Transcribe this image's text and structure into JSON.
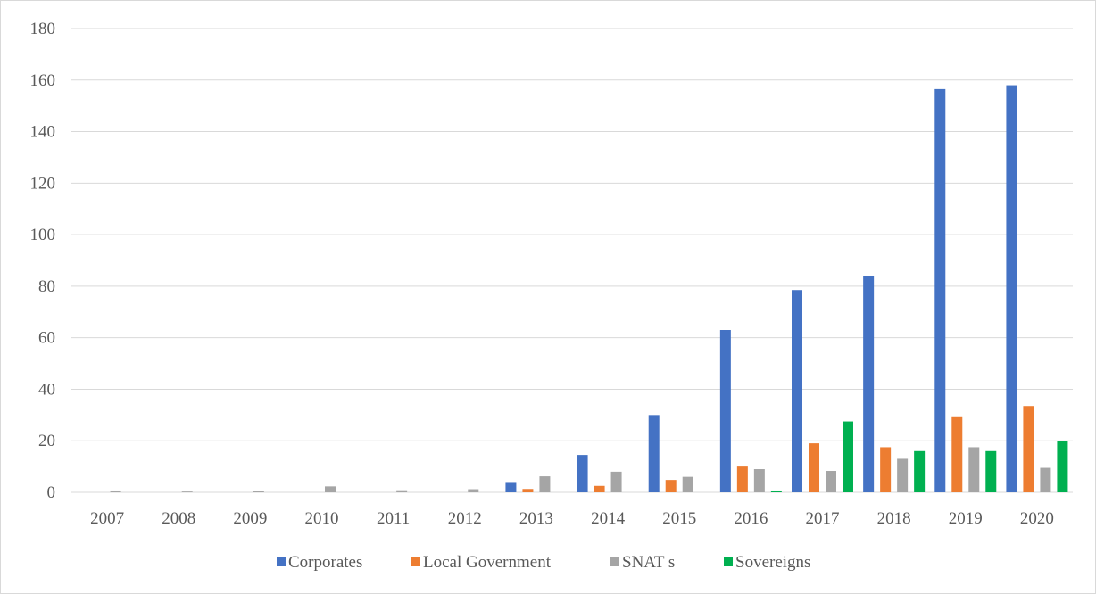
{
  "chart_data": {
    "type": "bar",
    "title": "",
    "xlabel": "",
    "ylabel": "",
    "ylim": [
      0,
      180
    ],
    "yticks": [
      0,
      20,
      40,
      60,
      80,
      100,
      120,
      140,
      160,
      180
    ],
    "grid": true,
    "legend_position": "bottom",
    "categories": [
      "2007",
      "2008",
      "2009",
      "2010",
      "2011",
      "2012",
      "2013",
      "2014",
      "2015",
      "2016",
      "2017",
      "2018",
      "2019",
      "2020"
    ],
    "series": [
      {
        "name": "Corporates",
        "color": "#4472c4",
        "values": [
          0,
          0,
          0,
          0,
          0,
          0,
          4,
          14.5,
          30,
          63,
          78.5,
          84,
          156.5,
          158
        ]
      },
      {
        "name": "Local Government",
        "color": "#ed7d31",
        "values": [
          0,
          0,
          0,
          0,
          0,
          0,
          1.3,
          2.5,
          4.8,
          10,
          19,
          17.5,
          29.5,
          33.5
        ]
      },
      {
        "name": "SNAT s",
        "color": "#a5a5a5",
        "values": [
          0.7,
          0.3,
          0.6,
          2.3,
          0.8,
          1.2,
          6.2,
          8,
          6,
          9,
          8.3,
          13,
          17.5,
          9.5
        ]
      },
      {
        "name": "Sovereigns",
        "color": "#00b050",
        "values": [
          0,
          0,
          0,
          0,
          0,
          0,
          0,
          0,
          0,
          0.7,
          27.5,
          16,
          16,
          20
        ]
      }
    ]
  }
}
